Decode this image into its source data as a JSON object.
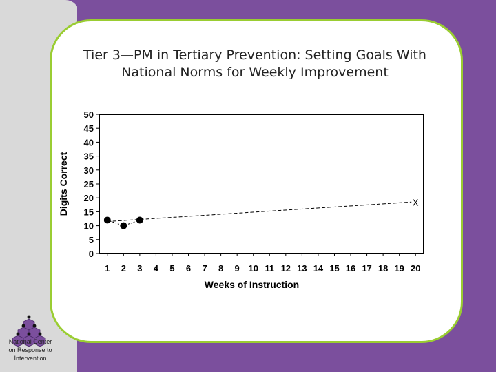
{
  "slide": {
    "title_line1": "Tier 3—PM in Tertiary Prevention: Setting Goals With",
    "title_line2": "National Norms for Weekly Improvement"
  },
  "logo": {
    "line1": "National Center",
    "line2": "on Response to",
    "line3": "Intervention"
  },
  "chart_data": {
    "type": "line",
    "title": "",
    "xlabel": "Weeks of Instruction",
    "ylabel": "Digits Correct",
    "xlim": [
      0.5,
      20.5
    ],
    "ylim": [
      0,
      50
    ],
    "x_ticks": [
      1,
      2,
      3,
      4,
      5,
      6,
      7,
      8,
      9,
      10,
      11,
      12,
      13,
      14,
      15,
      16,
      17,
      18,
      19,
      20
    ],
    "y_ticks": [
      0,
      5,
      10,
      15,
      20,
      25,
      30,
      35,
      40,
      45,
      50
    ],
    "grid": false,
    "series": [
      {
        "points": [
          {
            "x": 1,
            "y": 12
          },
          {
            "x": 2,
            "y": 10
          },
          {
            "x": 3,
            "y": 12
          }
        ],
        "marker": "circle",
        "line_style": "dotted"
      }
    ],
    "goal_line": {
      "from": {
        "x": 1,
        "y": 11.5
      },
      "to": {
        "x": 20,
        "y": 18.5
      },
      "line_style": "dashed",
      "end_marker": "X"
    }
  }
}
